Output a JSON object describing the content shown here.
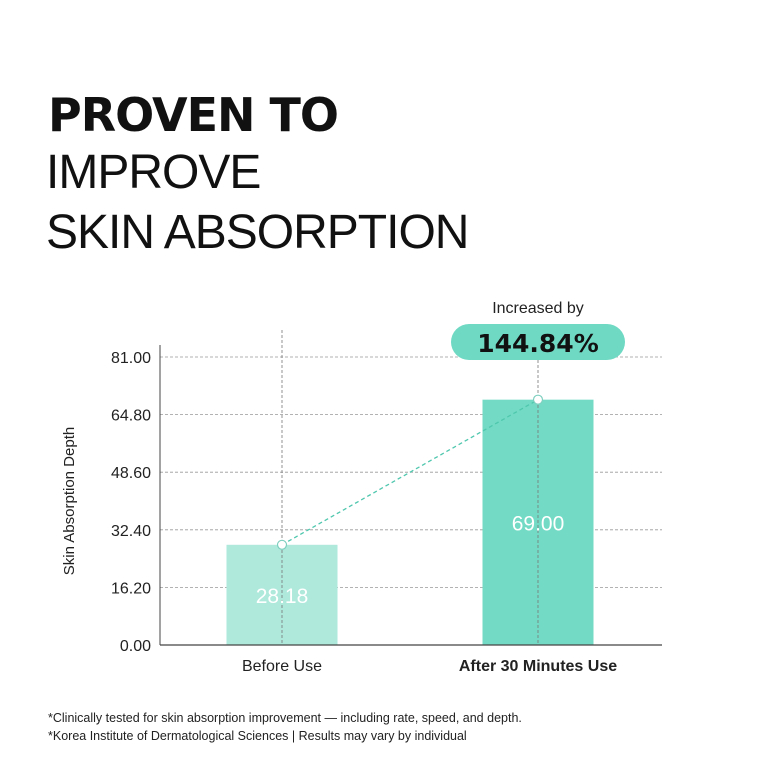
{
  "title": {
    "line1": "PROVEN TO",
    "line2": "IMPROVE",
    "line3": "SKIN ABSORPTION"
  },
  "chart_data": {
    "type": "bar",
    "categories": [
      "Before Use",
      "After 30 Minutes Use"
    ],
    "values": [
      28.18,
      69.0
    ],
    "value_labels": [
      "28.18",
      "69.00"
    ],
    "ylabel": "Skin Absorption Depth",
    "ylim": [
      0,
      81
    ],
    "yticks": [
      "0.00",
      "16.20",
      "32.40",
      "48.60",
      "64.80",
      "81.00"
    ],
    "ytick_values": [
      0,
      16.2,
      32.4,
      48.6,
      64.8,
      81
    ],
    "grid": true,
    "colors": [
      "#aee9dc",
      "#73dbc5"
    ],
    "annotation": {
      "caption": "Increased by",
      "value": "144.84%",
      "color": "#6fd9c3"
    },
    "connector": "dashed line between bar tops"
  },
  "footnotes": [
    "*Clinically tested for skin absorption improvement — including rate, speed, and depth.",
    "*Korea Institute of Dermatological Sciences | Results may vary by individual"
  ]
}
